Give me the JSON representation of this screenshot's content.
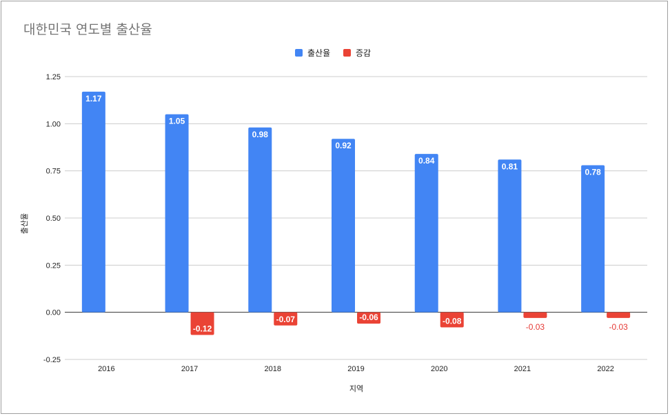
{
  "chart_data": {
    "type": "bar",
    "title": "대한민국 연도별 출산율",
    "xlabel": "지역",
    "ylabel": "출산율",
    "categories": [
      "2016",
      "2017",
      "2018",
      "2019",
      "2020",
      "2021",
      "2022"
    ],
    "series": [
      {
        "name": "출산율",
        "color": "#4285f4",
        "values": [
          1.17,
          1.05,
          0.98,
          0.92,
          0.84,
          0.81,
          0.78
        ],
        "labels": [
          "1.17",
          "1.05",
          "0.98",
          "0.92",
          "0.84",
          "0.81",
          "0.78"
        ]
      },
      {
        "name": "증감",
        "color": "#ea4335",
        "values": [
          null,
          -0.12,
          -0.07,
          -0.06,
          -0.08,
          -0.03,
          -0.03
        ],
        "labels": [
          null,
          "-0.12",
          "-0.07",
          "-0.06",
          "-0.08",
          "-0.03",
          "-0.03"
        ]
      }
    ],
    "ylim": [
      -0.25,
      1.25
    ],
    "yticks": [
      "1.25",
      "1.00",
      "0.75",
      "0.50",
      "0.25",
      "0.00",
      "-0.25"
    ],
    "grid": true,
    "legend": "top-center"
  }
}
